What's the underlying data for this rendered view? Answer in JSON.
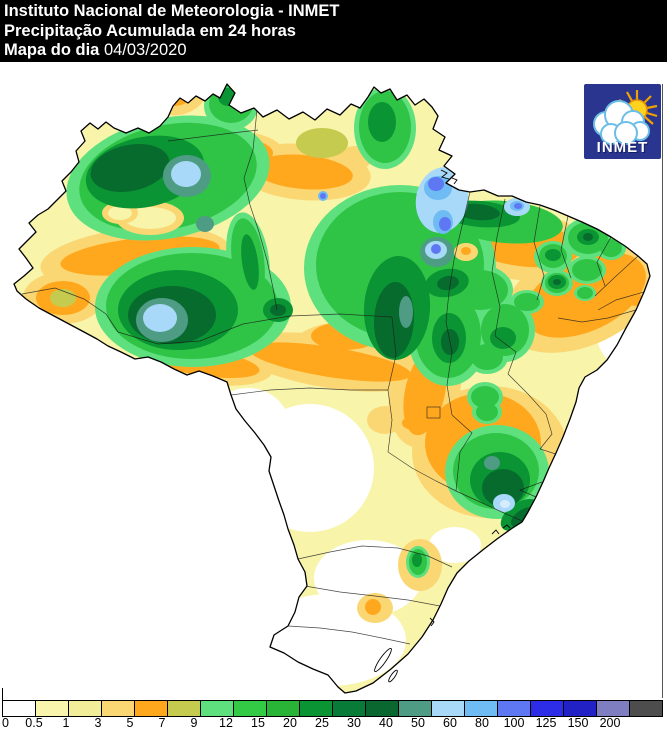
{
  "header": {
    "line1": "Instituto Nacional de Meteorologia - INMET",
    "line2": "Precipitação Acumulada em 24 horas",
    "line3_label": "Mapa do dia",
    "line3_date": "04/03/2020"
  },
  "logo": {
    "text": "INMET",
    "background": "#2A3590"
  },
  "legend": {
    "stops": [
      {
        "label": "0",
        "color": "#FFFFFF"
      },
      {
        "label": "0.5",
        "color": "#F9F5AC"
      },
      {
        "label": "1",
        "color": "#F2ED98"
      },
      {
        "label": "3",
        "color": "#FBD774"
      },
      {
        "label": "5",
        "color": "#FFA81E"
      },
      {
        "label": "7",
        "color": "#C5CB4E"
      },
      {
        "label": "9",
        "color": "#5FE07E"
      },
      {
        "label": "12",
        "color": "#33CB45"
      },
      {
        "label": "15",
        "color": "#2AB437"
      },
      {
        "label": "20",
        "color": "#0A9434"
      },
      {
        "label": "25",
        "color": "#087B38"
      },
      {
        "label": "30",
        "color": "#09672F"
      },
      {
        "label": "40",
        "color": "#4E9C84"
      },
      {
        "label": "50",
        "color": "#A8D9F8"
      },
      {
        "label": "60",
        "color": "#6FBBF3"
      },
      {
        "label": "80",
        "color": "#5E77F2"
      },
      {
        "label": "100",
        "color": "#2D2DE8"
      },
      {
        "label": "125",
        "color": "#2121C6"
      },
      {
        "label": "150",
        "color": "#7E7EC0"
      },
      {
        "label": "200",
        "color": "#4D4D4D"
      }
    ]
  }
}
